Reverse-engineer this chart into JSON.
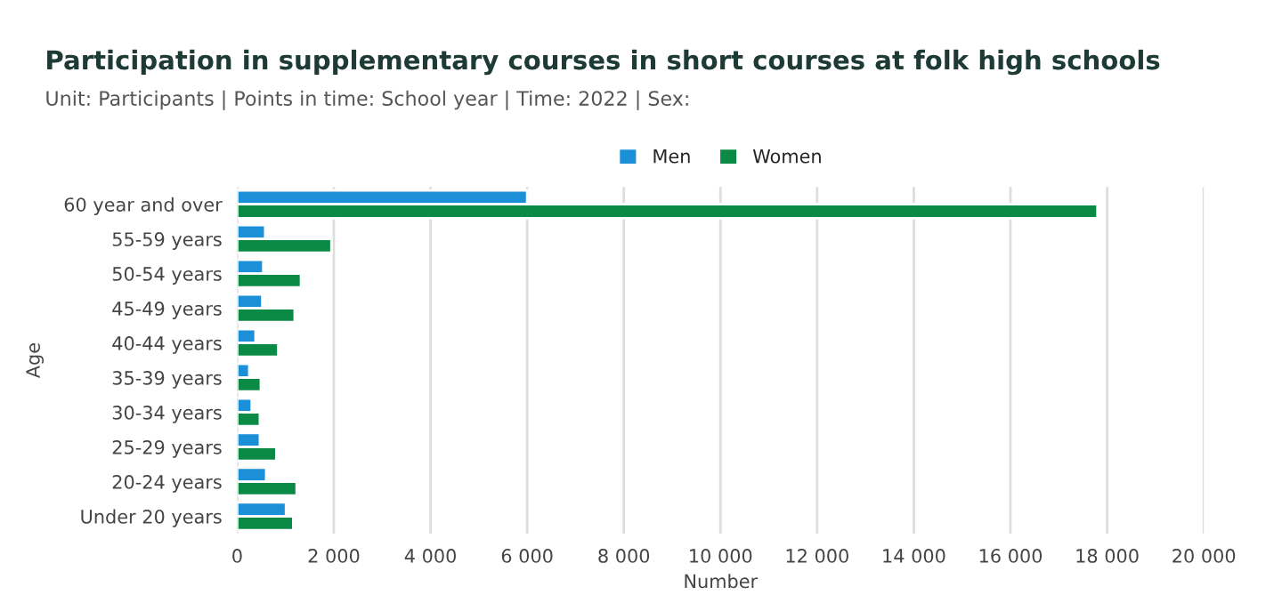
{
  "chart_data": {
    "type": "bar",
    "orientation": "horizontal",
    "title": "Participation in supplementary courses in short courses at folk high schools",
    "subtitle": "Unit: Participants | Points in time: School year | Time: 2022 | Sex:",
    "xlabel": "Number",
    "ylabel": "Age",
    "categories": [
      "60 year and over",
      "55-59 years",
      "50-54 years",
      "45-49 years",
      "40-44 years",
      "35-39 years",
      "30-34 years",
      "25-29 years",
      "20-24 years",
      "Under 20 years"
    ],
    "series": [
      {
        "name": "Men",
        "color": "#1b8fd8",
        "values": [
          6000,
          580,
          540,
          520,
          380,
          250,
          300,
          470,
          600,
          1010
        ]
      },
      {
        "name": "Women",
        "color": "#0b8a46",
        "values": [
          17800,
          1950,
          1320,
          1190,
          850,
          490,
          470,
          810,
          1230,
          1160
        ]
      }
    ],
    "xlim": [
      0,
      20000
    ],
    "xticks": [
      0,
      {
        "value": 2000,
        "label": "2 000"
      },
      {
        "value": 4000,
        "label": "4 000"
      },
      {
        "value": 6000,
        "label": "6 000"
      },
      {
        "value": 8000,
        "label": "8 000"
      },
      {
        "value": 10000,
        "label": "10 000"
      },
      {
        "value": 12000,
        "label": "12 000"
      },
      {
        "value": 14000,
        "label": "14 000"
      },
      {
        "value": 16000,
        "label": "16 000"
      },
      {
        "value": 18000,
        "label": "18 000"
      },
      {
        "value": 20000,
        "label": "20 000"
      }
    ],
    "grid": "x",
    "legend": "top"
  }
}
